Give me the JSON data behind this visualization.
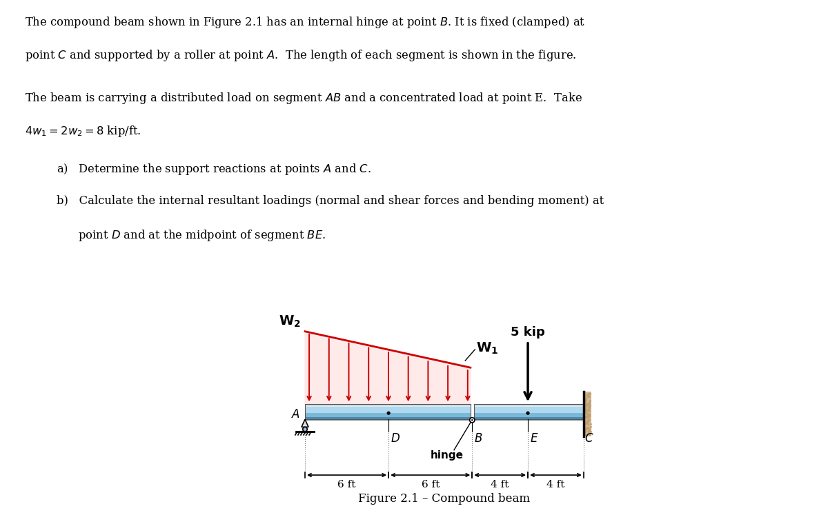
{
  "bg_color": "#ffffff",
  "text_color": "#000000",
  "load_color": "#cc0000",
  "fig_width": 12.0,
  "fig_height": 7.47,
  "title_text": "Figure 2.1 – Compound beam",
  "conc_load_label": "5 kip",
  "w1_label": "W",
  "w2_label": "W",
  "hinge_label": "hinge",
  "beam_light_blue": "#a8d8ea",
  "beam_mid_blue": "#5ba3c9",
  "beam_dark_blue": "#3a7fa8",
  "beam_top_gray": "#cccccc",
  "beam_bot_gray": "#999999",
  "wall_color": "#d4b896",
  "wall_hatch_color": "#b08060",
  "roller_color": "#aabbdd"
}
